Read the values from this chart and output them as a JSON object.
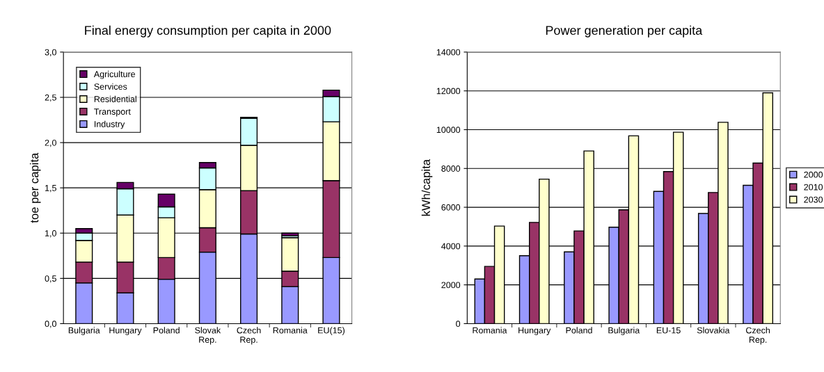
{
  "chart_data": [
    {
      "type": "bar",
      "title": "Final energy consumption per capita in 2000",
      "ylabel": "toe per capita",
      "stacked": true,
      "categories": [
        "Bulgaria",
        "Hungary",
        "Poland",
        "Slovak\nRep.",
        "Czech\nRep.",
        "Romania",
        "EU(15)"
      ],
      "series": [
        {
          "name": "Industry",
          "color": "#9999ff",
          "values": [
            0.45,
            0.34,
            0.49,
            0.79,
            0.99,
            0.41,
            0.73
          ]
        },
        {
          "name": "Transport",
          "color": "#993366",
          "values": [
            0.23,
            0.34,
            0.24,
            0.27,
            0.48,
            0.17,
            0.85
          ]
        },
        {
          "name": "Residential",
          "color": "#ffffcc",
          "values": [
            0.24,
            0.52,
            0.44,
            0.42,
            0.5,
            0.37,
            0.65
          ]
        },
        {
          "name": "Services",
          "color": "#ccffff",
          "values": [
            0.08,
            0.29,
            0.12,
            0.24,
            0.3,
            0.02,
            0.28
          ]
        },
        {
          "name": "Agriculture",
          "color": "#660066",
          "values": [
            0.05,
            0.07,
            0.14,
            0.06,
            0.01,
            0.03,
            0.07
          ]
        }
      ],
      "ylim": [
        0,
        3
      ],
      "yticks": [
        {
          "value": 0,
          "label": "0,0"
        },
        {
          "value": 0.5,
          "label": "0,5"
        },
        {
          "value": 1,
          "label": "1,0"
        },
        {
          "value": 1.5,
          "label": "1,5"
        },
        {
          "value": 2,
          "label": "2,0"
        },
        {
          "value": 2.5,
          "label": "2,5"
        },
        {
          "value": 3,
          "label": "3,0"
        }
      ],
      "grid": "y",
      "legend": "top left"
    },
    {
      "type": "bar",
      "title": "Power generation per capita",
      "ylabel": "kWh/capita",
      "categories": [
        "Romania",
        "Hungary",
        "Poland",
        "Bulgaria",
        "EU-15",
        "Slovakia",
        "Czech\nRep."
      ],
      "series": [
        {
          "name": "2000",
          "color": "#9999ff",
          "values": [
            2300,
            3500,
            3700,
            4970,
            6820,
            5680,
            7130
          ]
        },
        {
          "name": "2010",
          "color": "#993366",
          "values": [
            2950,
            5220,
            4780,
            5870,
            7840,
            6760,
            8280
          ]
        },
        {
          "name": "2030",
          "color": "#ffffcc",
          "values": [
            5030,
            7450,
            8900,
            9680,
            9870,
            10380,
            11900
          ]
        }
      ],
      "ylim": [
        0,
        14000
      ],
      "yticks": [
        0,
        2000,
        4000,
        6000,
        8000,
        10000,
        12000,
        14000
      ],
      "grid": "y",
      "legend": "right"
    }
  ]
}
